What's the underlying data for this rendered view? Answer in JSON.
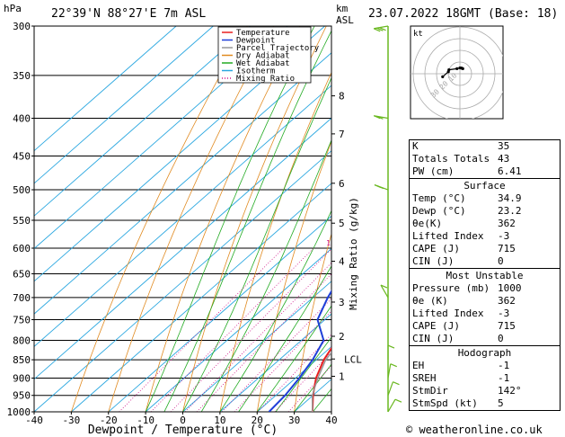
{
  "header": {
    "pressure_unit": "hPa",
    "location": "22°39'N  88°27'E  7m  ASL",
    "height_unit": "km",
    "height_unit2": "ASL",
    "datetime": "23.07.2022  18GMT  (Base: 18)"
  },
  "chart_data": {
    "type": "line",
    "title": "",
    "xlabel": "Dewpoint / Temperature (°C)",
    "ylabel": "hPa",
    "mixing_ratio_label": "Mixing Ratio (g/kg)",
    "xlim": [
      -40,
      40
    ],
    "ylim": [
      1000,
      300
    ],
    "skew": "log-pressure skew-T",
    "x_ticks": [
      "-40",
      "-30",
      "-20",
      "-10",
      "0",
      "10",
      "20",
      "30",
      "40"
    ],
    "pressure_levels": [
      300,
      350,
      400,
      450,
      500,
      550,
      600,
      650,
      700,
      750,
      800,
      850,
      900,
      950,
      1000
    ],
    "km_ticks": [
      {
        "label": "8",
        "p": 373
      },
      {
        "label": "7",
        "p": 420
      },
      {
        "label": "6",
        "p": 490
      },
      {
        "label": "5",
        "p": 555
      },
      {
        "label": "4",
        "p": 625
      },
      {
        "label": "3",
        "p": 710
      },
      {
        "label": "2",
        "p": 790
      },
      {
        "label": "LCL",
        "p": 848
      },
      {
        "label": "1",
        "p": 895
      }
    ],
    "mixing_ratio_labels": [
      {
        "label": "1",
        "x": -11
      },
      {
        "label": "2",
        "x": -1
      },
      {
        "label": "3",
        "x": 4
      },
      {
        "label": "4",
        "x": 8
      },
      {
        "label": "5",
        "x": 12
      },
      {
        "label": "8",
        "x": 17
      },
      {
        "label": "10",
        "x": 20
      },
      {
        "label": "15",
        "x": 26
      },
      {
        "label": "20",
        "x": 31
      },
      {
        "label": "25",
        "x": 34
      }
    ],
    "legend": [
      "Temperature",
      "Dewpoint",
      "Parcel Trajectory",
      "Dry Adiabat",
      "Wet Adiabat",
      "Isotherm",
      "Mixing Ratio"
    ],
    "legend_position": "top-right",
    "series": [
      {
        "name": "Temperature",
        "color": "#e82020",
        "points": [
          [
            1000,
            34.9
          ],
          [
            950,
            30
          ],
          [
            900,
            25.5
          ],
          [
            850,
            22
          ],
          [
            800,
            19.5
          ],
          [
            750,
            18.4
          ],
          [
            700,
            14
          ],
          [
            650,
            10.5
          ],
          [
            600,
            6.8
          ],
          [
            550,
            3
          ],
          [
            500,
            -1.5
          ],
          [
            450,
            -6.5
          ],
          [
            400,
            -12
          ],
          [
            350,
            -19
          ],
          [
            300,
            -28
          ]
        ]
      },
      {
        "name": "Dewpoint",
        "color": "#1f3fd8",
        "points": [
          [
            1000,
            23.2
          ],
          [
            950,
            22.5
          ],
          [
            900,
            21
          ],
          [
            850,
            19
          ],
          [
            800,
            16
          ],
          [
            750,
            8
          ],
          [
            700,
            4
          ],
          [
            650,
            0.5
          ],
          [
            600,
            -3
          ],
          [
            550,
            -8
          ],
          [
            500,
            -13.5
          ],
          [
            450,
            -20
          ],
          [
            400,
            -27
          ],
          [
            350,
            -35
          ],
          [
            300,
            -46
          ]
        ]
      },
      {
        "name": "Parcel Trajectory",
        "color": "#999999",
        "points": [
          [
            1000,
            34.9
          ],
          [
            950,
            29.8
          ],
          [
            900,
            26
          ],
          [
            850,
            22.5
          ],
          [
            800,
            20.8
          ],
          [
            750,
            18.8
          ],
          [
            700,
            16.1
          ],
          [
            650,
            13.2
          ],
          [
            600,
            10
          ],
          [
            550,
            6.3
          ],
          [
            500,
            2.3
          ],
          [
            450,
            -2.5
          ],
          [
            400,
            -8
          ],
          [
            350,
            -15
          ],
          [
            300,
            -24
          ]
        ]
      }
    ],
    "wind_profile": [
      {
        "p": 300,
        "dir": 80,
        "spd": 15
      },
      {
        "p": 400,
        "dir": 100,
        "spd": 10
      },
      {
        "p": 500,
        "dir": 110,
        "spd": 10
      },
      {
        "p": 700,
        "dir": 150,
        "spd": 5
      },
      {
        "p": 850,
        "dir": 180,
        "spd": 5
      },
      {
        "p": 900,
        "dir": 190,
        "spd": 5
      },
      {
        "p": 950,
        "dir": 200,
        "spd": 5
      },
      {
        "p": 1000,
        "dir": 210,
        "spd": 5
      }
    ],
    "hodograph": {
      "label": "kt",
      "ring_labels": [
        "10",
        "20",
        "30"
      ]
    }
  },
  "indices": [
    {
      "label": "K",
      "value": "35"
    },
    {
      "label": "Totals Totals",
      "value": "43"
    },
    {
      "label": "PW (cm)",
      "value": "6.41"
    }
  ],
  "surface": {
    "title": "Surface",
    "rows": [
      {
        "label": "Temp (°C)",
        "value": "34.9"
      },
      {
        "label": "Dewp (°C)",
        "value": "23.2"
      },
      {
        "label": "θe(K)",
        "value": "362"
      },
      {
        "label": "Lifted Index",
        "value": "-3"
      },
      {
        "label": "CAPE (J)",
        "value": "715"
      },
      {
        "label": "CIN (J)",
        "value": "0"
      }
    ]
  },
  "most_unstable": {
    "title": "Most Unstable",
    "rows": [
      {
        "label": "Pressure (mb)",
        "value": "1000"
      },
      {
        "label": "θe (K)",
        "value": "362"
      },
      {
        "label": "Lifted Index",
        "value": "-3"
      },
      {
        "label": "CAPE (J)",
        "value": "715"
      },
      {
        "label": "CIN (J)",
        "value": "0"
      }
    ]
  },
  "hodograph_table": {
    "title": "Hodograph",
    "rows": [
      {
        "label": "EH",
        "value": "-1"
      },
      {
        "label": "SREH",
        "value": "-1"
      },
      {
        "label": "StmDir",
        "value": "142°"
      },
      {
        "label": "StmSpd (kt)",
        "value": "5"
      }
    ]
  },
  "credit": "© weatheronline.co.uk"
}
